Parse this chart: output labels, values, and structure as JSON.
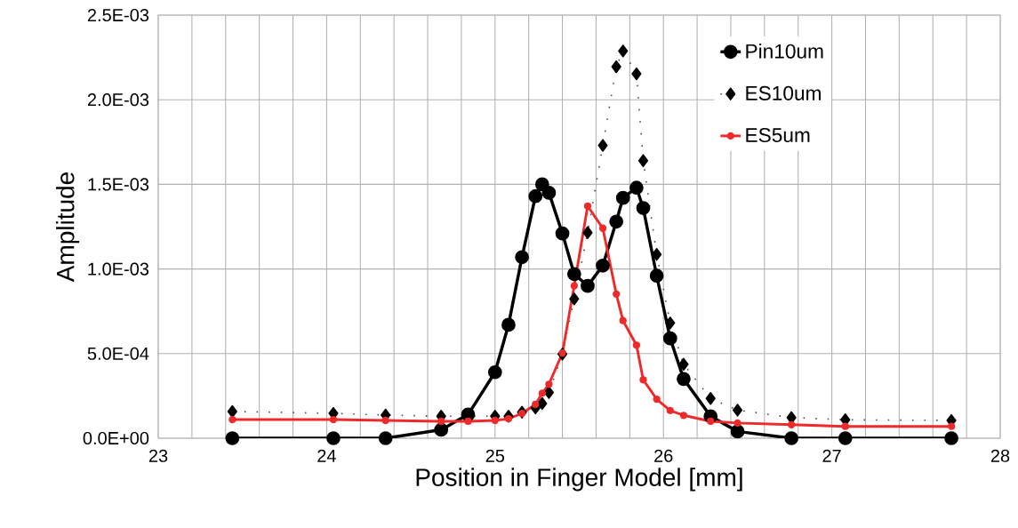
{
  "chart_data": {
    "type": "line",
    "xlabel": "Position in Finger Model [mm]",
    "ylabel": "Amplitude",
    "xlim": [
      23,
      28
    ],
    "xticks": [
      23,
      24,
      25,
      26,
      27,
      28
    ],
    "ylim": [
      0,
      0.0025
    ],
    "yticks": [
      {
        "value": 0,
        "label": "0.0E+00"
      },
      {
        "value": 0.0005,
        "label": "5.0E-04"
      },
      {
        "value": 0.001,
        "label": "1.0E-03"
      },
      {
        "value": 0.0015,
        "label": "1.5E-03"
      },
      {
        "value": 0.002,
        "label": "2.0E-03"
      },
      {
        "value": 0.0025,
        "label": "2.5E-03"
      }
    ],
    "grid": true,
    "legend": "top right",
    "x": [
      23.44,
      24.04,
      24.35,
      24.68,
      24.84,
      25.0,
      25.08,
      25.16,
      25.24,
      25.28,
      25.32,
      25.4,
      25.47,
      25.55,
      25.64,
      25.72,
      25.76,
      25.84,
      25.88,
      25.96,
      26.04,
      26.12,
      26.28,
      26.44,
      26.76,
      27.08,
      27.71
    ],
    "series": [
      {
        "name": "Pin10um",
        "color": "#000000",
        "marker": "circle",
        "line_style": "solid",
        "values": [
          0,
          0,
          0,
          5e-05,
          0.00014,
          0.00039,
          0.00067,
          0.00107,
          0.00143,
          0.0015,
          0.00145,
          0.00121,
          0.00097,
          0.0009,
          0.00102,
          0.00128,
          0.00142,
          0.00148,
          0.00136,
          0.00096,
          0.00059,
          0.00035,
          0.00013,
          4e-05,
          0,
          0,
          0
        ]
      },
      {
        "name": "ES10um",
        "color": "#000000",
        "marker": "diamond",
        "line_style": "dotted",
        "values": [
          0.000158,
          0.000147,
          0.000137,
          0.00013,
          0.00013,
          0.00013,
          0.00013,
          0.000154,
          0.000179,
          0.000205,
          0.00027,
          0.000497,
          0.000823,
          0.001215,
          0.00173,
          0.002195,
          0.002288,
          0.002153,
          0.00164,
          0.001086,
          0.000681,
          0.000437,
          0.000235,
          0.000166,
          0.000122,
          0.000109,
          0.000105
        ]
      },
      {
        "name": "ES5um",
        "color": "#ee2a2a",
        "marker": "circle",
        "line_style": "solid",
        "values": [
          0.00011,
          0.00011,
          0.000105,
          0.0001,
          0.0001,
          0.000105,
          0.000115,
          0.000147,
          0.0002,
          0.000266,
          0.000319,
          0.000503,
          0.0009,
          0.001372,
          0.001241,
          0.000852,
          0.000695,
          0.00055,
          0.000345,
          0.000231,
          0.000164,
          0.000135,
          0.0001,
          9e-05,
          8e-05,
          7e-05,
          7e-05
        ]
      }
    ]
  }
}
